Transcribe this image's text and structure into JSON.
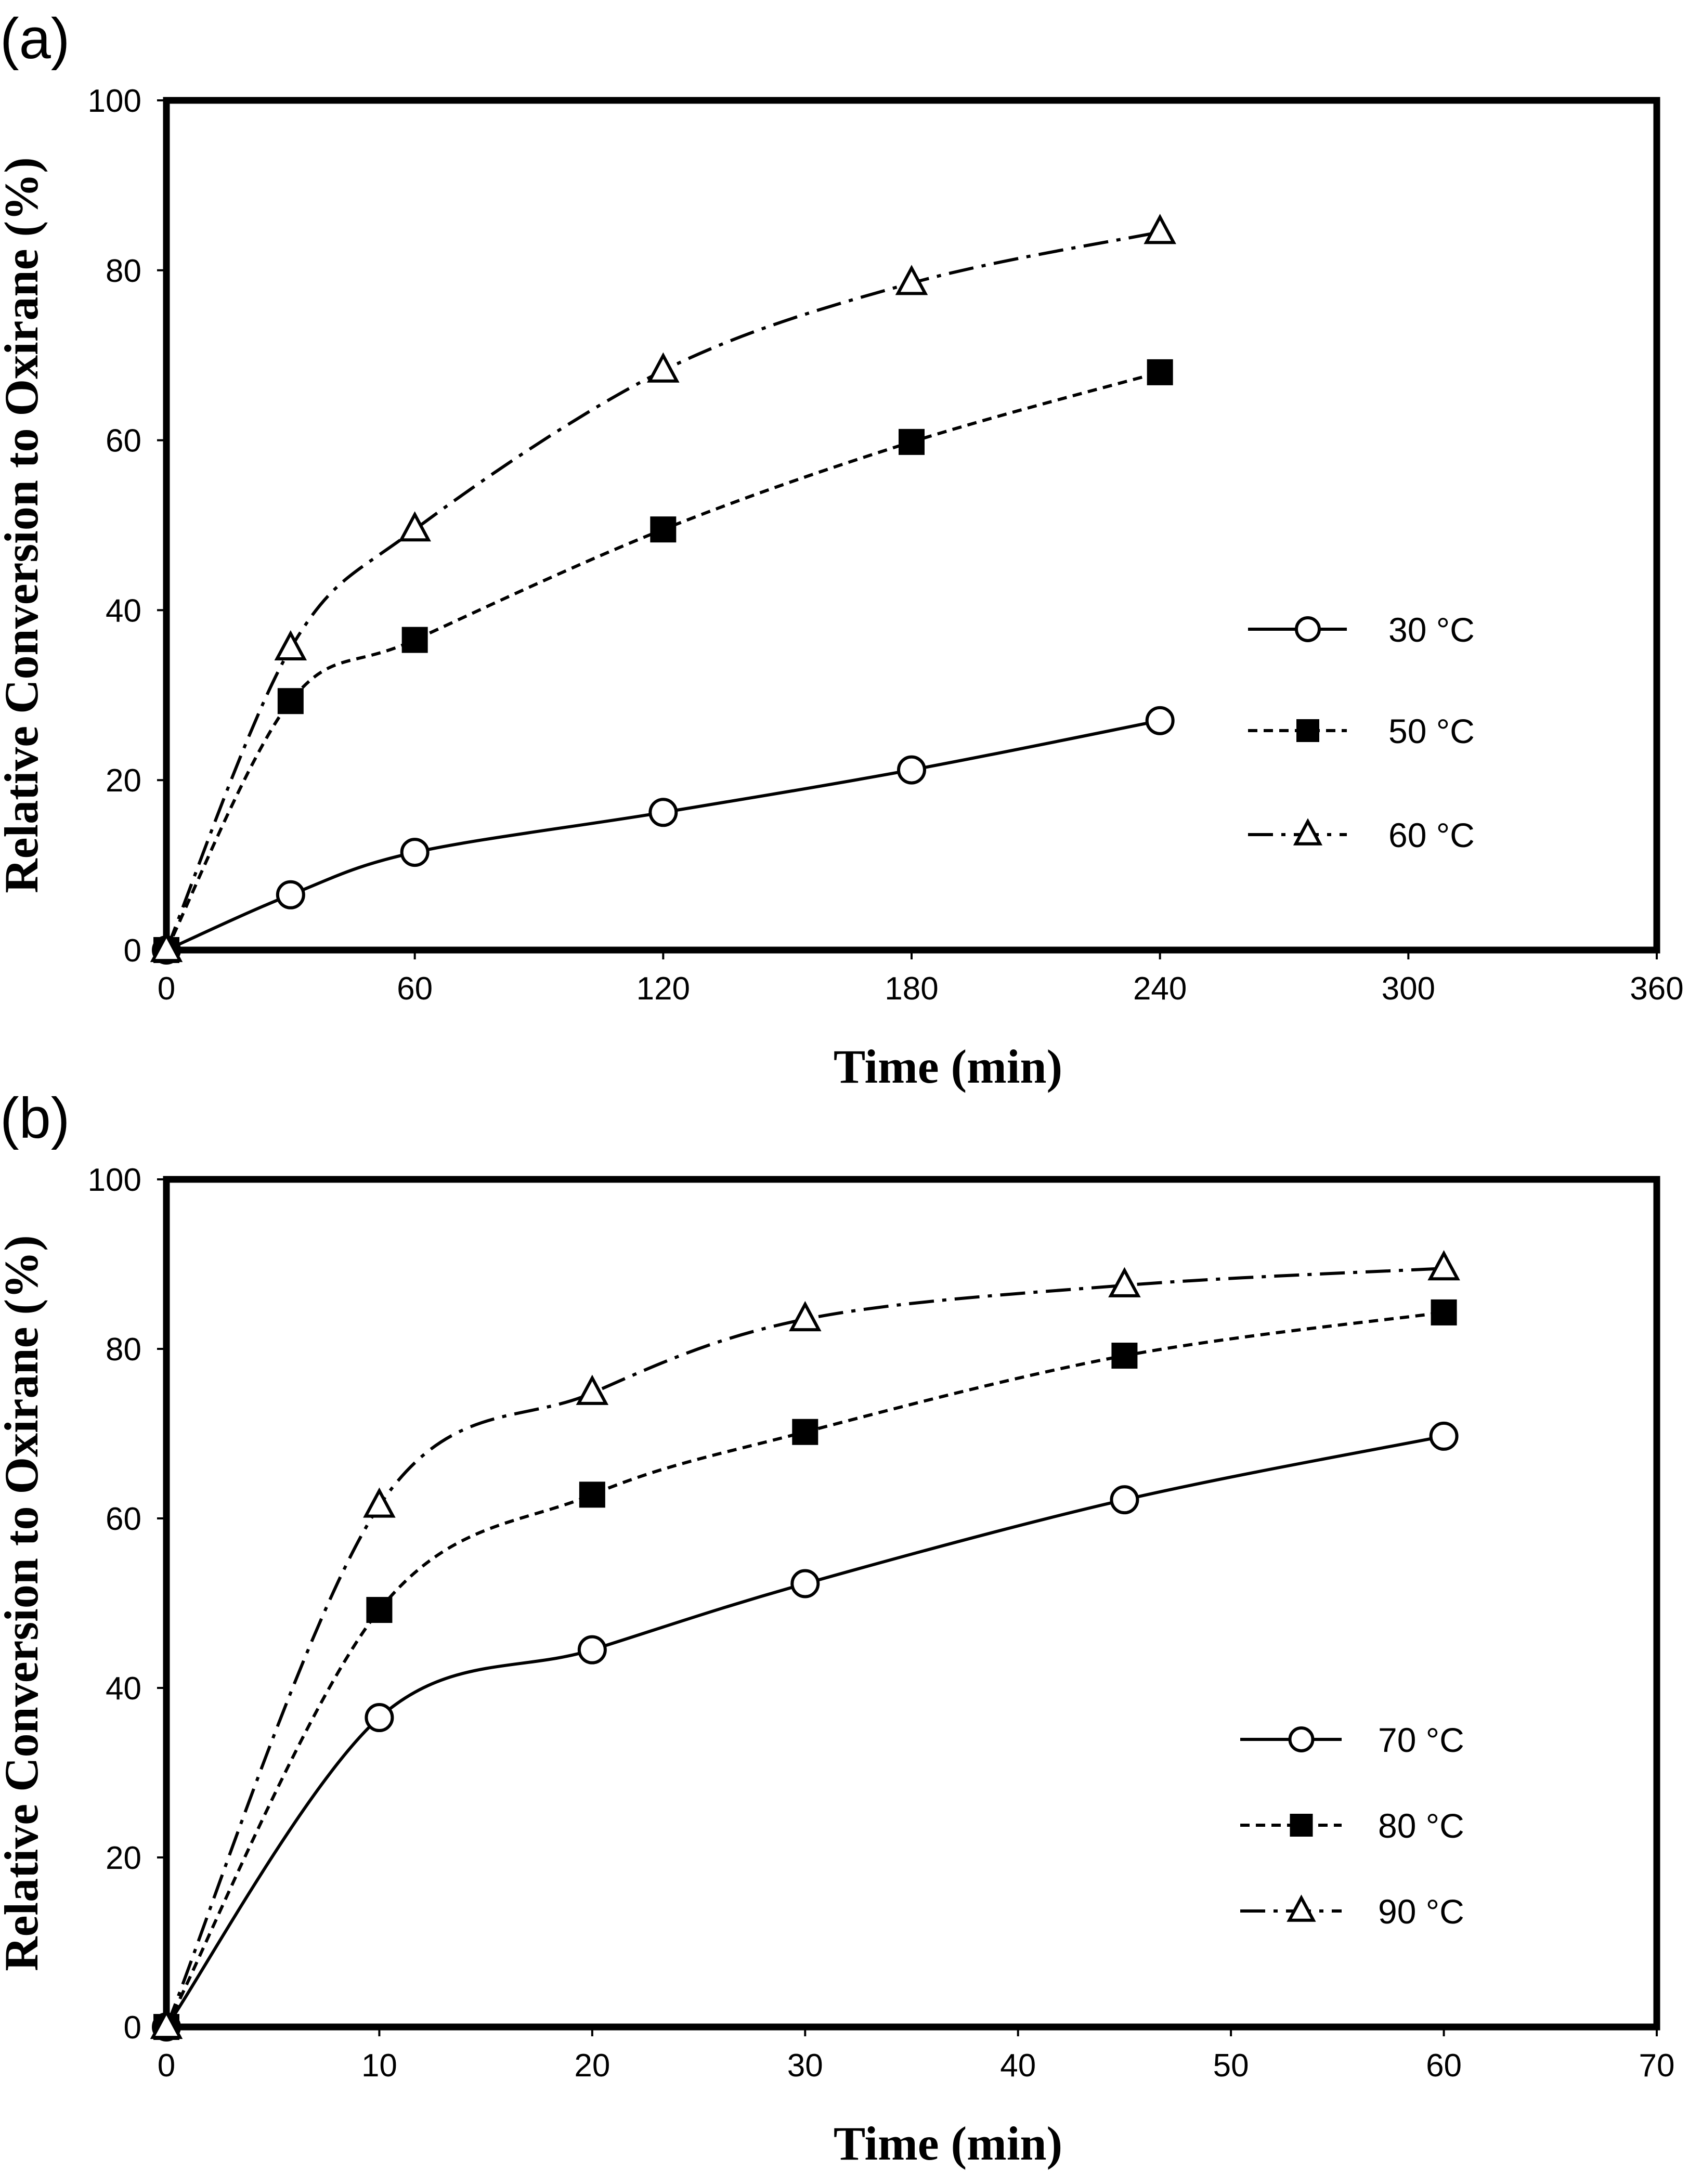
{
  "chart_data": [
    {
      "panel_label": "(a)",
      "type": "line",
      "xlabel": "Time (min)",
      "ylabel": "Relative Conversion to Oxirane (%)",
      "xlim": [
        0,
        360
      ],
      "ylim": [
        0,
        100
      ],
      "x_ticks": [
        "0",
        "60",
        "120",
        "180",
        "240",
        "300",
        "360"
      ],
      "y_ticks": [
        "0",
        "20",
        "40",
        "60",
        "80",
        "100"
      ],
      "legend_position": "right",
      "grid": false,
      "series": [
        {
          "name": "30 °C",
          "marker": "circle-open",
          "line": "solid",
          "x": [
            0,
            30,
            60,
            120,
            180,
            240
          ],
          "y": [
            0,
            6.5,
            11.5,
            16.2,
            21.2,
            27
          ]
        },
        {
          "name": "50 °C",
          "marker": "square-filled",
          "line": "dashed",
          "x": [
            0,
            30,
            60,
            120,
            180,
            240
          ],
          "y": [
            0,
            29.3,
            36.5,
            49.5,
            59.8,
            68
          ]
        },
        {
          "name": "60 °C",
          "marker": "triangle-open",
          "line": "dashdot",
          "x": [
            0,
            30,
            60,
            120,
            180,
            240
          ],
          "y": [
            0,
            35.5,
            49.5,
            68.2,
            78.5,
            84.5
          ]
        }
      ]
    },
    {
      "panel_label": "(b)",
      "type": "line",
      "xlabel": "Time (min)",
      "ylabel": "Relative Conversion to Oxirane (%)",
      "xlim": [
        0,
        70
      ],
      "ylim": [
        0,
        100
      ],
      "x_ticks": [
        "0",
        "10",
        "20",
        "30",
        "40",
        "50",
        "60",
        "70"
      ],
      "y_ticks": [
        "0",
        "20",
        "40",
        "60",
        "80",
        "100"
      ],
      "legend_position": "bottom-right",
      "grid": false,
      "series": [
        {
          "name": "70 °C",
          "marker": "circle-open",
          "line": "solid",
          "x": [
            0,
            10,
            20,
            30,
            45,
            60
          ],
          "y": [
            0,
            36.5,
            44.5,
            52.3,
            62.2,
            69.7
          ]
        },
        {
          "name": "80 °C",
          "marker": "square-filled",
          "line": "dashed",
          "x": [
            0,
            10,
            20,
            30,
            45,
            60
          ],
          "y": [
            0,
            49.2,
            62.8,
            70.2,
            79.2,
            84.3
          ]
        },
        {
          "name": "90 °C",
          "marker": "triangle-open",
          "line": "dashdot",
          "x": [
            0,
            10,
            20,
            30,
            45,
            60
          ],
          "y": [
            0,
            61.5,
            74.8,
            83.5,
            87.5,
            89.5
          ]
        }
      ]
    }
  ]
}
